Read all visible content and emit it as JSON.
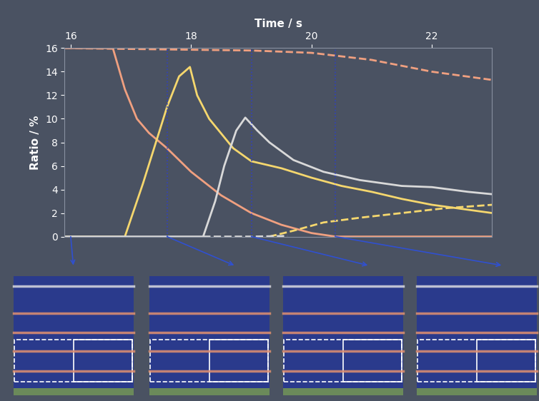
{
  "chart_data": {
    "type": "line",
    "xlabel": "Time / s",
    "ylabel": "Ratio / %",
    "xlim": [
      15.9,
      23.0
    ],
    "xticks": [
      16,
      18,
      20,
      22
    ],
    "ylim": [
      0,
      16
    ],
    "yticks": [
      0,
      2,
      4,
      6,
      8,
      10,
      12,
      14,
      16
    ],
    "vlines": [
      17.6,
      19.0,
      20.4
    ],
    "snapshot_times": [
      16.0,
      17.6,
      19.0,
      20.4
    ],
    "series": [
      {
        "color": "#f0a080",
        "line_style": "solid",
        "x": [
          15.9,
          16.7,
          16.9,
          17.1,
          17.3,
          17.6,
          18.0,
          18.5,
          19.0,
          19.5,
          20.0,
          20.4,
          23.0
        ],
        "values": [
          16,
          16,
          12.5,
          10,
          8.8,
          7.5,
          5.5,
          3.5,
          2.0,
          1.0,
          0.3,
          0,
          0
        ]
      },
      {
        "color": "#f0a080",
        "line_style": "dashed",
        "x": [
          15.9,
          19.0,
          20.0,
          21.0,
          22.0,
          23.0
        ],
        "values": [
          16,
          15.8,
          15.6,
          15.0,
          14.0,
          13.3
        ]
      },
      {
        "color": "#f5d76e",
        "line_style": "solid",
        "x": [
          15.9,
          16.9,
          17.2,
          17.6,
          17.8,
          17.98,
          18.1,
          18.3,
          18.7,
          19.0,
          19.5,
          20.0,
          20.5,
          21.0,
          21.5,
          22.0,
          23.0
        ],
        "values": [
          0,
          0,
          4.5,
          11.0,
          13.6,
          14.4,
          12.0,
          10.0,
          7.5,
          6.4,
          5.8,
          5.0,
          4.3,
          3.8,
          3.2,
          2.7,
          2.0
        ]
      },
      {
        "color": "#f5d76e",
        "line_style": "dashed",
        "x": [
          19.3,
          19.7,
          20.2,
          20.8,
          21.5,
          22.2,
          23.0
        ],
        "values": [
          0,
          0.5,
          1.2,
          1.6,
          2.0,
          2.4,
          2.7
        ]
      },
      {
        "color": "#d9d9d9",
        "line_style": "solid",
        "x": [
          15.9,
          18.2,
          18.4,
          18.55,
          18.75,
          18.9,
          19.1,
          19.3,
          19.7,
          20.2,
          20.8,
          21.5,
          22.0,
          22.6,
          23.0
        ],
        "values": [
          0,
          0,
          3.0,
          6.0,
          9.0,
          10.1,
          9.0,
          8.0,
          6.5,
          5.5,
          4.8,
          4.3,
          4.2,
          3.8,
          3.6
        ]
      },
      {
        "color": "#d9d9d9",
        "line_style": "dashed",
        "x": [
          18.2,
          19.0,
          19.6
        ],
        "values": [
          0,
          0,
          0.05
        ]
      }
    ]
  }
}
